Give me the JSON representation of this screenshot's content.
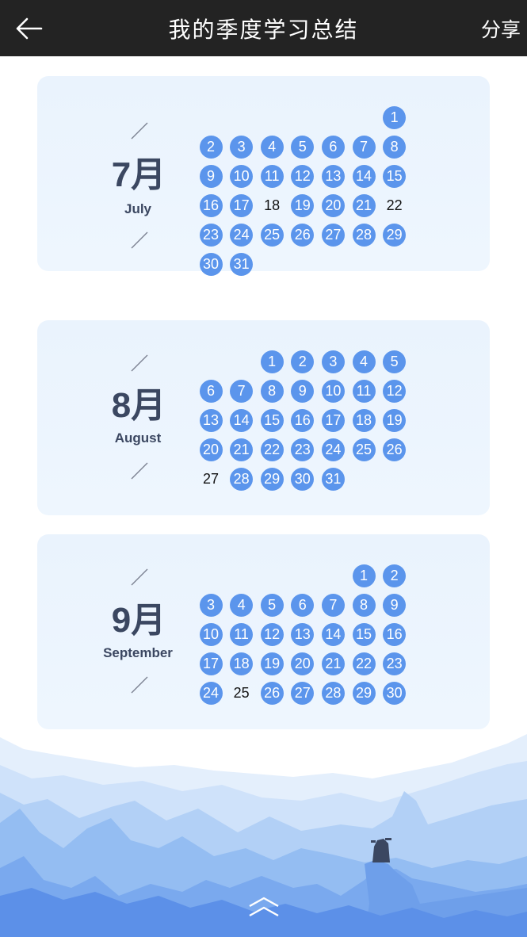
{
  "header": {
    "title": "我的季度学习总结",
    "share_label": "分享"
  },
  "icons": {
    "back": "arrow-left-icon",
    "up": "double-chevron-up-icon",
    "slash": "slash-divider-icon"
  },
  "colors": {
    "header_bg": "#232323",
    "card_bg": "#eaf3fd",
    "active_day": "#5b95ec",
    "month_text": "#3b4761"
  },
  "months": [
    {
      "label": "7月",
      "english": "July",
      "start_weekday": 6,
      "days_in_month": 31,
      "inactive_days": [
        18,
        22
      ]
    },
    {
      "label": "8月",
      "english": "August",
      "start_weekday": 2,
      "days_in_month": 31,
      "inactive_days": [
        27
      ]
    },
    {
      "label": "9月",
      "english": "September",
      "start_weekday": 5,
      "days_in_month": 30,
      "inactive_days": [
        25
      ]
    }
  ]
}
